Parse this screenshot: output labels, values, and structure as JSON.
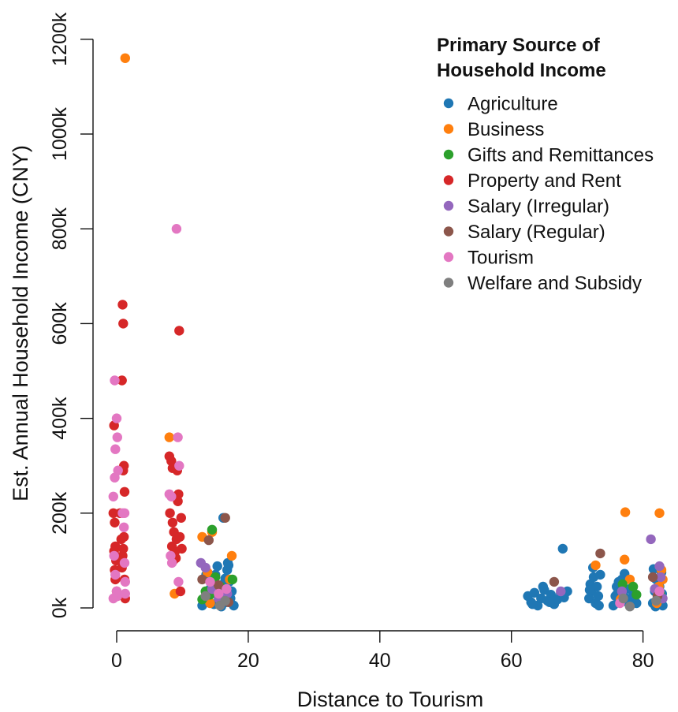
{
  "chart_data": {
    "type": "scatter",
    "xlabel": "Distance to Tourism",
    "ylabel": "Est. Annual Household Income (CNY)",
    "xlim": [
      -1,
      83
    ],
    "ylim": [
      0,
      1200000
    ],
    "x_ticks": [
      0,
      20,
      40,
      60,
      80
    ],
    "x_tick_labels": [
      "0",
      "20",
      "40",
      "60",
      "80"
    ],
    "y_ticks": [
      0,
      200000,
      400000,
      600000,
      800000,
      1000000,
      1200000
    ],
    "y_tick_labels": [
      "0k",
      "200k",
      "400k",
      "600k",
      "800k",
      "1000k",
      "1200k"
    ],
    "grid": false,
    "legend_position": "top-right",
    "legend_title_lines": [
      "Primary Source of",
      "Household Income"
    ],
    "series": [
      {
        "name": "Agriculture",
        "color": "#1f77b4",
        "points": [
          [
            13,
            5000
          ],
          [
            13.5,
            15000
          ],
          [
            14,
            25000
          ],
          [
            14.2,
            40000
          ],
          [
            14.6,
            55000
          ],
          [
            15,
            70000
          ],
          [
            15.3,
            88000
          ],
          [
            15.6,
            10000
          ],
          [
            16,
            30000
          ],
          [
            16.2,
            50000
          ],
          [
            16.5,
            62000
          ],
          [
            16.8,
            80000
          ],
          [
            17,
            90000
          ],
          [
            17.3,
            20000
          ],
          [
            17.5,
            35000
          ],
          [
            17.8,
            5000
          ],
          [
            16.2,
            190000
          ],
          [
            13.6,
            70000
          ],
          [
            15.1,
            45000
          ],
          [
            16.6,
            12000
          ],
          [
            14.8,
            8000
          ],
          [
            17.1,
            55000
          ],
          [
            15.9,
            3000
          ],
          [
            13.9,
            35000
          ],
          [
            16.9,
            95000
          ],
          [
            62.5,
            25000
          ],
          [
            63,
            12000
          ],
          [
            63.5,
            32000
          ],
          [
            64,
            5000
          ],
          [
            64.5,
            20000
          ],
          [
            65,
            38000
          ],
          [
            65.5,
            15000
          ],
          [
            66,
            28000
          ],
          [
            66.5,
            8000
          ],
          [
            67,
            18000
          ],
          [
            67.5,
            30000
          ],
          [
            68,
            22000
          ],
          [
            68.5,
            35000
          ],
          [
            64.8,
            45000
          ],
          [
            67.8,
            125000
          ],
          [
            63.2,
            8000
          ],
          [
            65.8,
            12000
          ],
          [
            71.8,
            20000
          ],
          [
            72,
            50000
          ],
          [
            72.2,
            35000
          ],
          [
            72.5,
            65000
          ],
          [
            72.8,
            10000
          ],
          [
            73,
            45000
          ],
          [
            73.2,
            25000
          ],
          [
            73.5,
            70000
          ],
          [
            72.4,
            85000
          ],
          [
            73.3,
            5000
          ],
          [
            71.9,
            38000
          ],
          [
            75.5,
            5000
          ],
          [
            75.8,
            25000
          ],
          [
            76,
            45000
          ],
          [
            76.3,
            55000
          ],
          [
            76.5,
            15000
          ],
          [
            76.8,
            60000
          ],
          [
            77,
            35000
          ],
          [
            77.2,
            72000
          ],
          [
            77.5,
            20000
          ],
          [
            77.8,
            10000
          ],
          [
            78,
            40000
          ],
          [
            78.5,
            25000
          ],
          [
            79,
            10000
          ],
          [
            76.1,
            30000
          ],
          [
            81.5,
            10000
          ],
          [
            81.8,
            35000
          ],
          [
            82,
            60000
          ],
          [
            82.2,
            20000
          ],
          [
            82.5,
            45000
          ],
          [
            82.8,
            75000
          ],
          [
            83,
            5000
          ],
          [
            81.6,
            82000
          ],
          [
            82.3,
            15000
          ],
          [
            82.9,
            30000
          ],
          [
            81.9,
            3000
          ]
        ]
      },
      {
        "name": "Business",
        "color": "#ff7f0e",
        "points": [
          [
            1.3,
            1160000
          ],
          [
            8,
            360000
          ],
          [
            8.8,
            30000
          ],
          [
            13,
            150000
          ],
          [
            13.8,
            75000
          ],
          [
            14.5,
            160000
          ],
          [
            17.5,
            110000
          ],
          [
            17.2,
            60000
          ],
          [
            14.2,
            10000
          ],
          [
            72.8,
            90000
          ],
          [
            77.3,
            202000
          ],
          [
            77.2,
            102000
          ],
          [
            78,
            60000
          ],
          [
            76.6,
            18000
          ],
          [
            82.5,
            200000
          ],
          [
            82.8,
            80000
          ],
          [
            83,
            60000
          ],
          [
            82.4,
            45000
          ],
          [
            82.1,
            10000
          ]
        ]
      },
      {
        "name": "Gifts and Remittances",
        "color": "#2ca02c",
        "points": [
          [
            14.5,
            165000
          ],
          [
            13,
            18000
          ],
          [
            15,
            65000
          ],
          [
            15.8,
            45000
          ],
          [
            13.5,
            35000
          ],
          [
            17.6,
            60000
          ],
          [
            14.2,
            28000
          ],
          [
            78.5,
            45000
          ],
          [
            79,
            28000
          ],
          [
            82.6,
            30000
          ],
          [
            76.9,
            50000
          ]
        ]
      },
      {
        "name": "Property and Rent",
        "color": "#d62728",
        "points": [
          [
            -0.4,
            385000
          ],
          [
            -0.5,
            200000
          ],
          [
            -0.3,
            180000
          ],
          [
            -0.2,
            130000
          ],
          [
            -0.4,
            120000
          ],
          [
            -0.1,
            100000
          ],
          [
            -0.3,
            80000
          ],
          [
            -0.2,
            60000
          ],
          [
            0,
            35000
          ],
          [
            0.1,
            25000
          ],
          [
            -0.2,
            110000
          ],
          [
            0.8,
            480000
          ],
          [
            0.9,
            640000
          ],
          [
            1,
            600000
          ],
          [
            1.1,
            300000
          ],
          [
            1,
            290000
          ],
          [
            1.2,
            245000
          ],
          [
            0.7,
            145000
          ],
          [
            1.1,
            150000
          ],
          [
            0.9,
            110000
          ],
          [
            0.8,
            85000
          ],
          [
            1.2,
            60000
          ],
          [
            1.3,
            20000
          ],
          [
            0.5,
            200000
          ],
          [
            1,
            125000
          ],
          [
            8,
            320000
          ],
          [
            8.3,
            310000
          ],
          [
            8.5,
            295000
          ],
          [
            9.2,
            290000
          ],
          [
            9.5,
            585000
          ],
          [
            9.4,
            240000
          ],
          [
            9.3,
            225000
          ],
          [
            8.1,
            200000
          ],
          [
            8.5,
            180000
          ],
          [
            9.8,
            190000
          ],
          [
            8.7,
            160000
          ],
          [
            9.1,
            145000
          ],
          [
            9.6,
            150000
          ],
          [
            8.4,
            130000
          ],
          [
            8.9,
            120000
          ],
          [
            9.9,
            125000
          ],
          [
            9,
            105000
          ],
          [
            9.7,
            35000
          ],
          [
            8.6,
            100000
          ]
        ]
      },
      {
        "name": "Salary (Irregular)",
        "color": "#9467bd",
        "points": [
          [
            12.8,
            95000
          ],
          [
            13.5,
            85000
          ],
          [
            14.5,
            40000
          ],
          [
            15.5,
            20000
          ],
          [
            16.8,
            30000
          ],
          [
            67.5,
            35000
          ],
          [
            76.8,
            35000
          ],
          [
            81.2,
            145000
          ],
          [
            81.8,
            40000
          ],
          [
            82.5,
            88000
          ],
          [
            82.7,
            65000
          ],
          [
            83,
            20000
          ]
        ]
      },
      {
        "name": "Salary (Regular)",
        "color": "#8c564b",
        "points": [
          [
            14,
            143000
          ],
          [
            16.5,
            190000
          ],
          [
            13,
            60000
          ],
          [
            15.5,
            48000
          ],
          [
            17,
            12000
          ],
          [
            66.5,
            55000
          ],
          [
            73.5,
            115000
          ],
          [
            81.5,
            65000
          ],
          [
            82.2,
            25000
          ]
        ]
      },
      {
        "name": "Tourism",
        "color": "#e377c2",
        "points": [
          [
            -0.5,
            235000
          ],
          [
            -0.3,
            275000
          ],
          [
            -0.2,
            335000
          ],
          [
            0,
            400000
          ],
          [
            0.1,
            360000
          ],
          [
            0.2,
            290000
          ],
          [
            -0.4,
            110000
          ],
          [
            -0.2,
            70000
          ],
          [
            0,
            35000
          ],
          [
            0.1,
            25000
          ],
          [
            -0.5,
            20000
          ],
          [
            -0.3,
            480000
          ],
          [
            1.2,
            200000
          ],
          [
            1.1,
            170000
          ],
          [
            1.2,
            95000
          ],
          [
            1.3,
            55000
          ],
          [
            0.9,
            200000
          ],
          [
            1.3,
            30000
          ],
          [
            8,
            240000
          ],
          [
            8.3,
            235000
          ],
          [
            9.1,
            800000
          ],
          [
            9.3,
            360000
          ],
          [
            9.5,
            300000
          ],
          [
            8.2,
            110000
          ],
          [
            8.4,
            95000
          ],
          [
            9.4,
            55000
          ],
          [
            14.2,
            55000
          ],
          [
            15.5,
            30000
          ],
          [
            16.7,
            40000
          ],
          [
            76.5,
            10000
          ],
          [
            82.5,
            35000
          ]
        ]
      },
      {
        "name": "Welfare and Subsidy",
        "color": "#7f7f7f",
        "points": [
          [
            15.7,
            5000
          ],
          [
            16.5,
            15000
          ],
          [
            13.5,
            25000
          ],
          [
            77,
            20000
          ],
          [
            78,
            3000
          ],
          [
            82,
            15000
          ]
        ]
      }
    ]
  }
}
